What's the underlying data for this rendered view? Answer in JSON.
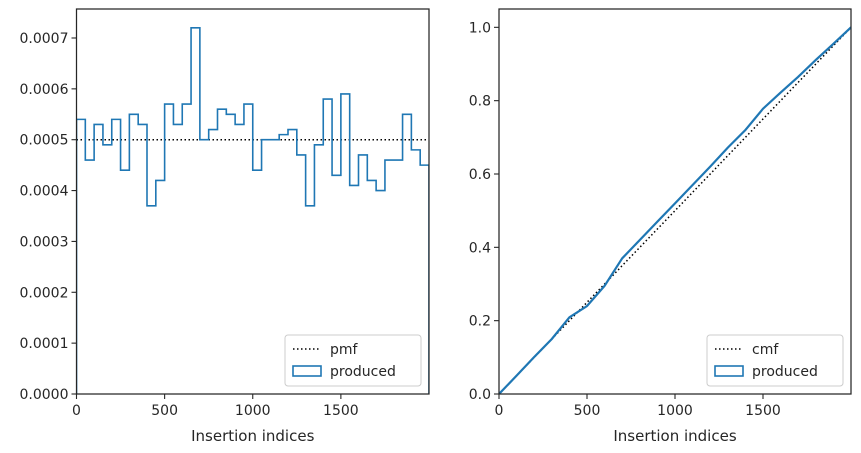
{
  "chart_data": [
    {
      "type": "histogram-step",
      "xlabel": "Insertion indices",
      "ylabel": "",
      "xlim": [
        0,
        2000
      ],
      "ylim": [
        0,
        0.000757
      ],
      "xticks": [
        0,
        500,
        1000,
        1500
      ],
      "xtick_labels": [
        "0",
        "500",
        "1000",
        "1500"
      ],
      "yticks": [
        0,
        0.0001,
        0.0002,
        0.0003,
        0.0004,
        0.0005,
        0.0006,
        0.0007
      ],
      "ytick_labels": [
        "0.0000",
        "0.0001",
        "0.0002",
        "0.0003",
        "0.0004",
        "0.0005",
        "0.0006",
        "0.0007"
      ],
      "legend": {
        "position": "lower-right",
        "entries": [
          {
            "label": "pmf",
            "style": "dotted"
          },
          {
            "label": "produced",
            "style": "step"
          }
        ]
      },
      "series": [
        {
          "name": "pmf",
          "style": "dotted",
          "color": "#000000",
          "x": [
            0,
            2000
          ],
          "values": [
            0.0005,
            0.0005
          ]
        },
        {
          "name": "produced",
          "style": "step",
          "color": "#1f77b4",
          "bin_edges": [
            0,
            50,
            100,
            150,
            200,
            250,
            300,
            350,
            400,
            450,
            500,
            550,
            600,
            650,
            700,
            750,
            800,
            850,
            900,
            950,
            1000,
            1050,
            1100,
            1150,
            1200,
            1250,
            1300,
            1350,
            1400,
            1450,
            1500,
            1550,
            1600,
            1650,
            1700,
            1750,
            1800,
            1850,
            1900,
            1950,
            2000
          ],
          "values": [
            0.00054,
            0.00046,
            0.00053,
            0.00049,
            0.00054,
            0.00044,
            0.00055,
            0.00053,
            0.00037,
            0.00042,
            0.00057,
            0.00053,
            0.00057,
            0.00072,
            0.0005,
            0.00052,
            0.00056,
            0.00055,
            0.00053,
            0.00057,
            0.00044,
            0.0005,
            0.0005,
            0.00051,
            0.00052,
            0.00047,
            0.00037,
            0.00049,
            0.00058,
            0.00043,
            0.00059,
            0.00041,
            0.00047,
            0.00042,
            0.0004,
            0.00046,
            0.00046,
            0.00055,
            0.00048,
            0.00045
          ]
        }
      ]
    },
    {
      "type": "line",
      "xlabel": "Insertion indices",
      "ylabel": "",
      "xlim": [
        0,
        2000
      ],
      "ylim": [
        0,
        1.05
      ],
      "xticks": [
        0,
        500,
        1000,
        1500
      ],
      "xtick_labels": [
        "0",
        "500",
        "1000",
        "1500"
      ],
      "yticks": [
        0,
        0.2,
        0.4,
        0.6,
        0.8,
        1.0
      ],
      "ytick_labels": [
        "0.0",
        "0.2",
        "0.4",
        "0.6",
        "0.8",
        "1.0"
      ],
      "legend": {
        "position": "lower-right",
        "entries": [
          {
            "label": "cmf",
            "style": "dotted"
          },
          {
            "label": "produced",
            "style": "step"
          }
        ]
      },
      "series": [
        {
          "name": "cmf",
          "style": "dotted",
          "color": "#000000",
          "x": [
            0,
            2000
          ],
          "values": [
            0,
            1
          ]
        },
        {
          "name": "produced",
          "style": "line",
          "color": "#1f77b4",
          "x": [
            0,
            100,
            200,
            300,
            400,
            500,
            600,
            700,
            800,
            900,
            1000,
            1100,
            1200,
            1300,
            1400,
            1500,
            1600,
            1700,
            1800,
            1900,
            2000
          ],
          "values": [
            0,
            0.05,
            0.101,
            0.15,
            0.209,
            0.24,
            0.295,
            0.37,
            0.42,
            0.47,
            0.52,
            0.57,
            0.62,
            0.672,
            0.72,
            0.778,
            0.822,
            0.865,
            0.911,
            0.955,
            1.0
          ]
        }
      ]
    }
  ]
}
